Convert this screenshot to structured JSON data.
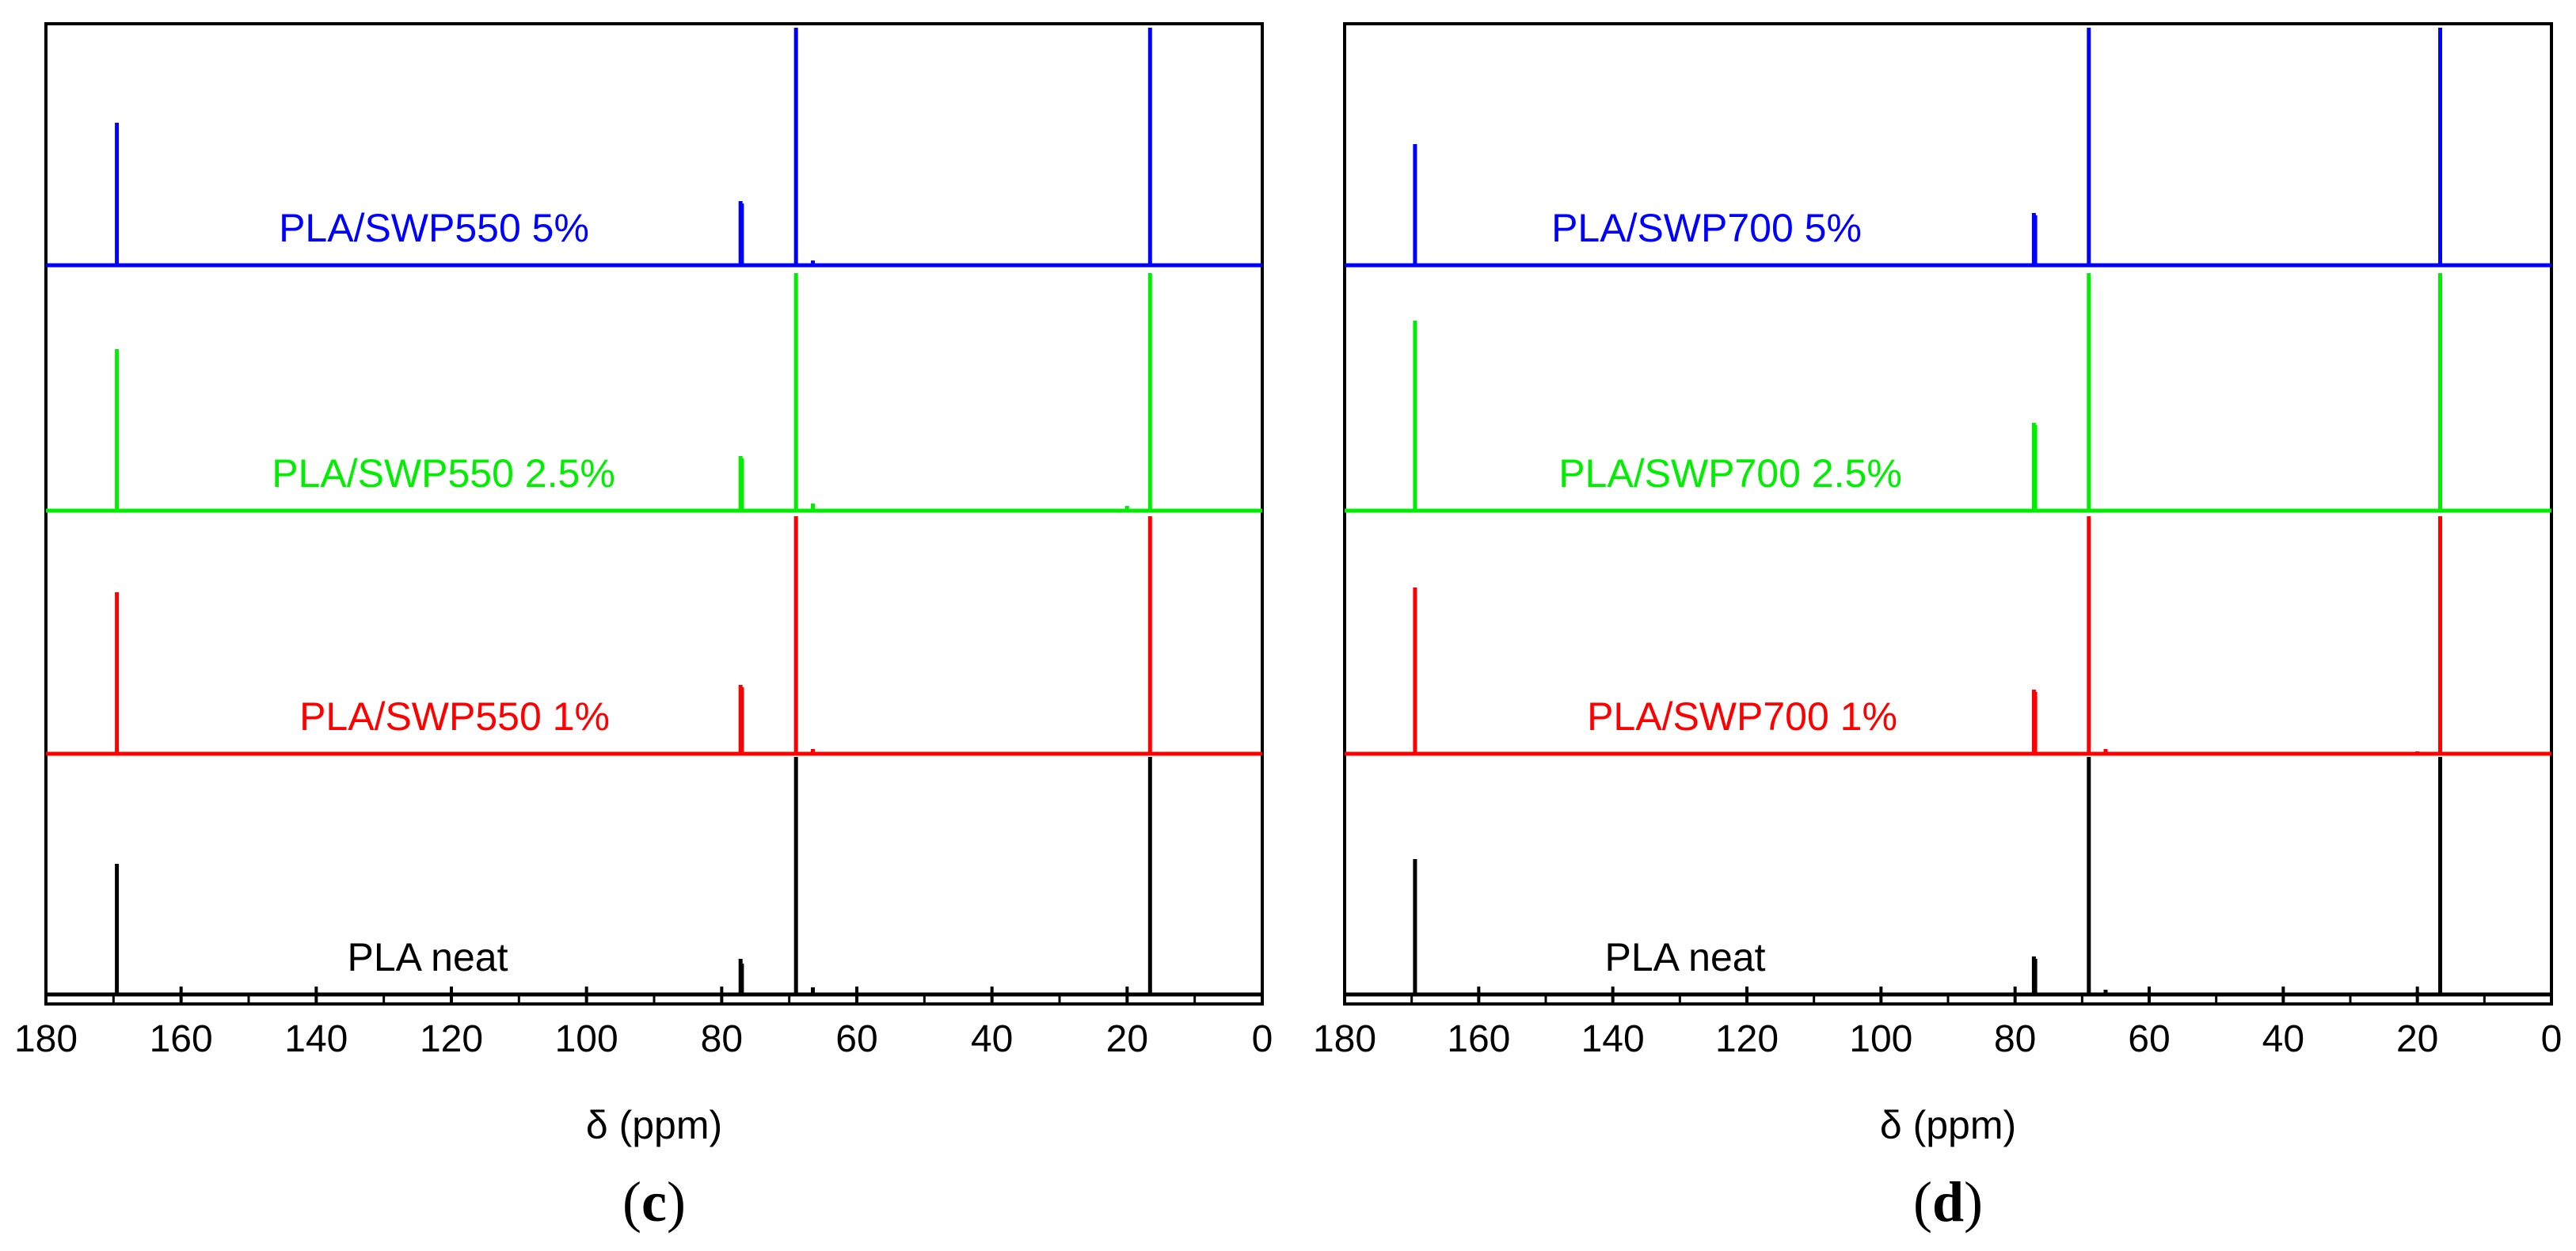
{
  "chart_data": [
    {
      "type": "line",
      "panel": "c",
      "caption": {
        "open": "(",
        "letter": "c",
        "close": ")"
      },
      "xlabel": "δ (ppm)",
      "ylabel": "",
      "xlim": [
        180,
        0
      ],
      "x_reversed": true,
      "xticks": [
        180,
        160,
        140,
        120,
        100,
        80,
        60,
        40,
        20,
        0
      ],
      "grid": false,
      "series": [
        {
          "name": "PLA neat",
          "color": "#000000",
          "peaks": [
            {
              "x": 169.5,
              "h": 0.55
            },
            {
              "x": 77.2,
              "h": 0.15
            },
            {
              "x": 77.0,
              "h": 0.13
            },
            {
              "x": 69.0,
              "h": 1.0
            },
            {
              "x": 66.5,
              "h": 0.03
            },
            {
              "x": 16.6,
              "h": 1.0
            }
          ]
        },
        {
          "name": "PLA/SWP550 1%",
          "color": "#ff0000",
          "peaks": [
            {
              "x": 169.5,
              "h": 0.68
            },
            {
              "x": 77.2,
              "h": 0.29
            },
            {
              "x": 77.0,
              "h": 0.28
            },
            {
              "x": 69.0,
              "h": 1.0
            },
            {
              "x": 66.5,
              "h": 0.02
            },
            {
              "x": 16.6,
              "h": 1.0
            }
          ]
        },
        {
          "name": "PLA/SWP550 2.5%",
          "color": "#00ee00",
          "peaks": [
            {
              "x": 169.5,
              "h": 0.68
            },
            {
              "x": 77.2,
              "h": 0.23
            },
            {
              "x": 77.0,
              "h": 0.22
            },
            {
              "x": 69.0,
              "h": 1.0
            },
            {
              "x": 66.5,
              "h": 0.03
            },
            {
              "x": 20.0,
              "h": 0.02
            },
            {
              "x": 16.6,
              "h": 1.0
            }
          ]
        },
        {
          "name": "PLA/SWP550 5%",
          "color": "#0000ff",
          "peaks": [
            {
              "x": 169.5,
              "h": 0.6
            },
            {
              "x": 77.2,
              "h": 0.27
            },
            {
              "x": 77.0,
              "h": 0.26
            },
            {
              "x": 69.0,
              "h": 1.0
            },
            {
              "x": 66.5,
              "h": 0.02
            },
            {
              "x": 16.6,
              "h": 1.0
            }
          ]
        }
      ]
    },
    {
      "type": "line",
      "panel": "d",
      "caption": {
        "open": "(",
        "letter": "d",
        "close": ")"
      },
      "xlabel": "δ (ppm)",
      "ylabel": "",
      "xlim": [
        180,
        0
      ],
      "x_reversed": true,
      "xticks": [
        180,
        160,
        140,
        120,
        100,
        80,
        60,
        40,
        20,
        0
      ],
      "grid": false,
      "series": [
        {
          "name": "PLA neat",
          "color": "#000000",
          "peaks": [
            {
              "x": 169.5,
              "h": 0.57
            },
            {
              "x": 77.2,
              "h": 0.16
            },
            {
              "x": 77.0,
              "h": 0.15
            },
            {
              "x": 69.0,
              "h": 1.0
            },
            {
              "x": 66.5,
              "h": 0.02
            },
            {
              "x": 20.0,
              "h": 0.01
            },
            {
              "x": 16.6,
              "h": 1.0
            }
          ]
        },
        {
          "name": "PLA/SWP700 1%",
          "color": "#ff0000",
          "peaks": [
            {
              "x": 169.5,
              "h": 0.7
            },
            {
              "x": 77.2,
              "h": 0.27
            },
            {
              "x": 77.0,
              "h": 0.26
            },
            {
              "x": 69.0,
              "h": 1.0
            },
            {
              "x": 66.5,
              "h": 0.02
            },
            {
              "x": 20.0,
              "h": 0.01
            },
            {
              "x": 16.6,
              "h": 1.0
            }
          ]
        },
        {
          "name": "PLA/SWP700 2.5%",
          "color": "#00ee00",
          "peaks": [
            {
              "x": 169.5,
              "h": 0.8
            },
            {
              "x": 77.2,
              "h": 0.37
            },
            {
              "x": 77.0,
              "h": 0.36
            },
            {
              "x": 69.0,
              "h": 1.0
            },
            {
              "x": 16.6,
              "h": 1.0
            }
          ]
        },
        {
          "name": "PLA/SWP700 5%",
          "color": "#0000ff",
          "peaks": [
            {
              "x": 169.5,
              "h": 0.51
            },
            {
              "x": 77.2,
              "h": 0.22
            },
            {
              "x": 77.0,
              "h": 0.21
            },
            {
              "x": 69.0,
              "h": 1.0
            },
            {
              "x": 16.6,
              "h": 1.0
            }
          ]
        }
      ]
    }
  ]
}
